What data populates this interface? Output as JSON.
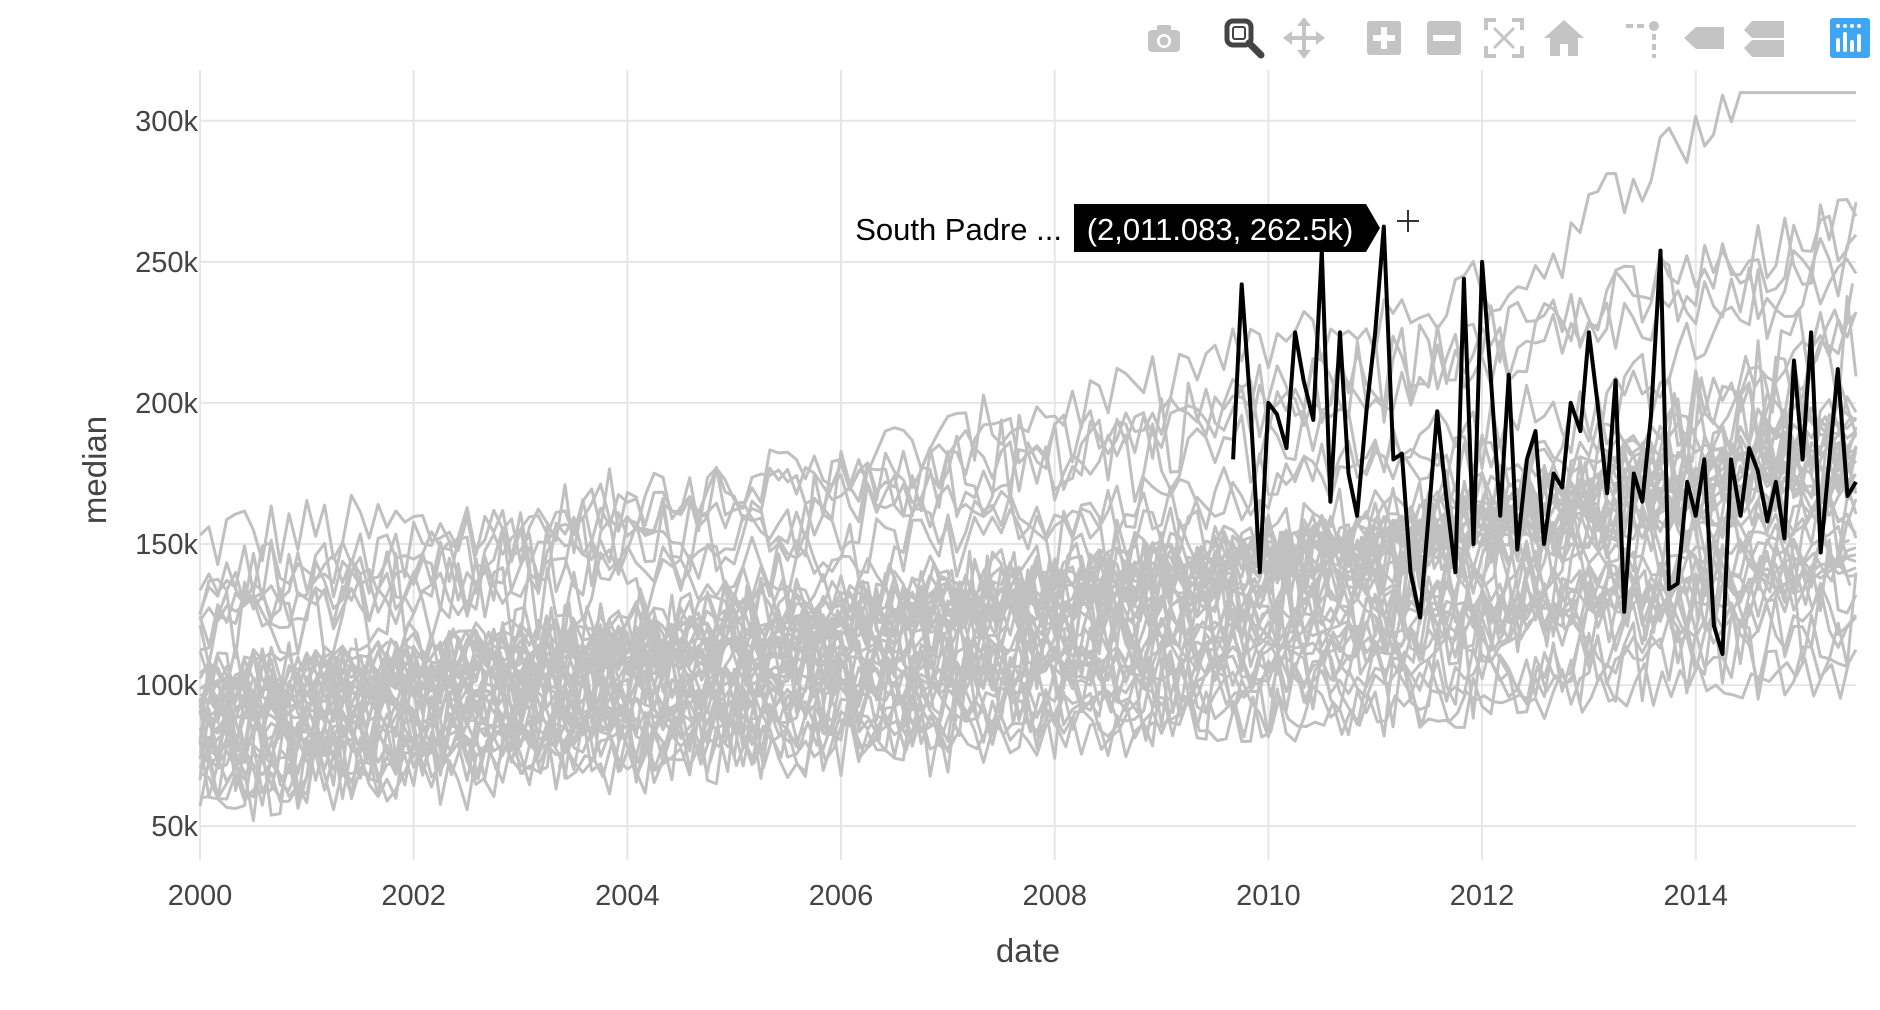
{
  "modebar": {
    "buttons": [
      {
        "name": "camera-icon",
        "title": "Download plot as a png"
      },
      {
        "name": "zoom-icon",
        "title": "Zoom",
        "active": true
      },
      {
        "name": "pan-icon",
        "title": "Pan"
      },
      {
        "name": "zoom-in-icon",
        "title": "Zoom in"
      },
      {
        "name": "zoom-out-icon",
        "title": "Zoom out"
      },
      {
        "name": "autoscale-icon",
        "title": "Autoscale"
      },
      {
        "name": "home-icon",
        "title": "Reset axes"
      },
      {
        "name": "spike-lines-icon",
        "title": "Toggle Spike Lines"
      },
      {
        "name": "hover-closest-icon",
        "title": "Show closest data on hover"
      },
      {
        "name": "hover-compare-icon",
        "title": "Compare data on hover"
      },
      {
        "name": "plotly-logo-icon",
        "title": "Produced with Plotly"
      }
    ],
    "colors": {
      "icon": "#c4c4c4",
      "active": "#444444",
      "logo": "#3fa6f4"
    }
  },
  "chart_data": {
    "type": "line",
    "xlabel": "date",
    "ylabel": "median",
    "x_ticks": [
      "2000",
      "2002",
      "2004",
      "2006",
      "2008",
      "2010",
      "2012",
      "2014"
    ],
    "x_tick_values": [
      2000,
      2002,
      2004,
      2006,
      2008,
      2010,
      2012,
      2014
    ],
    "y_ticks": [
      "50k",
      "100k",
      "150k",
      "200k",
      "250k",
      "300k"
    ],
    "y_tick_values": [
      50000,
      100000,
      150000,
      200000,
      250000,
      300000
    ],
    "xlim": [
      2000,
      2015.5
    ],
    "ylim": [
      38000,
      318000
    ],
    "grid": true,
    "background_series_color": "#c0c0c0",
    "highlight_color": "#000000",
    "background_series_count": 46,
    "highlight_series": {
      "name": "South Padre Island",
      "x": [
        2009.67,
        2009.75,
        2009.83,
        2009.92,
        2010.0,
        2010.08,
        2010.17,
        2010.25,
        2010.33,
        2010.42,
        2010.5,
        2010.58,
        2010.67,
        2010.75,
        2010.83,
        2010.92,
        2011.0,
        2011.08,
        2011.17,
        2011.25,
        2011.33,
        2011.42,
        2011.5,
        2011.58,
        2011.67,
        2011.75,
        2011.83,
        2011.92,
        2012.0,
        2012.08,
        2012.17,
        2012.25,
        2012.33,
        2012.42,
        2012.5,
        2012.58,
        2012.67,
        2012.75,
        2012.83,
        2012.92,
        2013.0,
        2013.08,
        2013.17,
        2013.25,
        2013.33,
        2013.42,
        2013.5,
        2013.58,
        2013.67,
        2013.75,
        2013.83,
        2013.92,
        2014.0,
        2014.08,
        2014.17,
        2014.25,
        2014.33,
        2014.42,
        2014.5,
        2014.58,
        2014.67,
        2014.75,
        2014.83,
        2014.92,
        2015.0,
        2015.08,
        2015.17,
        2015.25,
        2015.33,
        2015.42,
        2015.5
      ],
      "y": [
        180000,
        242000,
        200000,
        140000,
        200000,
        196000,
        184000,
        225000,
        208000,
        194000,
        254000,
        165000,
        225000,
        175000,
        160000,
        198000,
        225000,
        262500,
        180000,
        182000,
        140000,
        124000,
        160000,
        197000,
        165000,
        140000,
        244000,
        150000,
        250000,
        210000,
        160000,
        210000,
        148000,
        180000,
        190000,
        150000,
        175000,
        170000,
        200000,
        190000,
        225000,
        200000,
        168000,
        208000,
        126000,
        175000,
        165000,
        195000,
        254000,
        134000,
        136000,
        172000,
        160000,
        180000,
        121000,
        111000,
        180000,
        160000,
        184000,
        176000,
        158000,
        172000,
        152000,
        215000,
        180000,
        225000,
        147000,
        180000,
        212000,
        167000,
        172000
      ]
    },
    "hover": {
      "name": "South Padre ...",
      "text": "(2,011.083, 262.5k)",
      "x": 2011.083,
      "y": 262500
    }
  }
}
